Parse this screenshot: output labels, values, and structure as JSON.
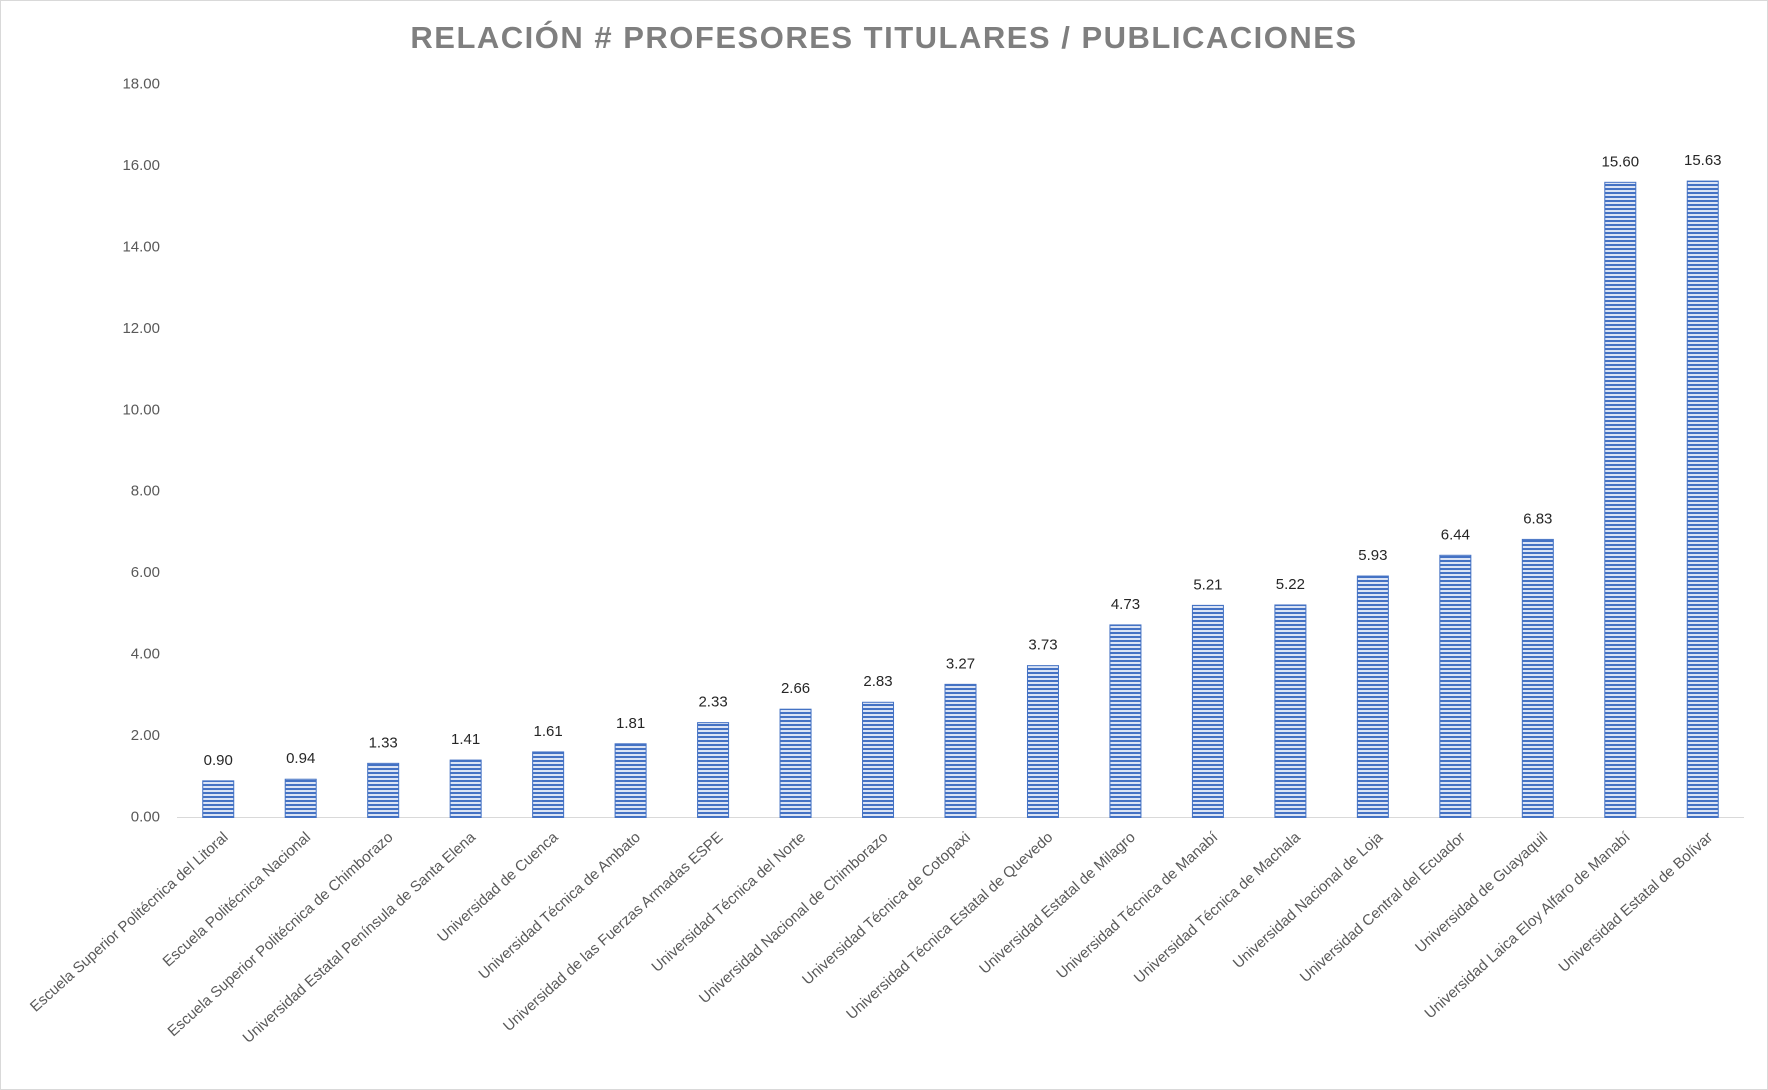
{
  "chart_data": {
    "type": "bar",
    "title": "RELACIÓN # PROFESORES TITULARES / PUBLICACIONES",
    "categories": [
      "Escuela Superior Politécnica del Litoral",
      "Escuela Politécnica Nacional",
      "Escuela Superior Politécnica de Chimborazo",
      "Universidad Estatal Península de Santa Elena",
      "Universidad de Cuenca",
      "Universidad Técnica de Ambato",
      "Universidad de las Fuerzas Armadas ESPE",
      "Universidad Técnica del Norte",
      "Universidad Nacional de Chimborazo",
      "Universidad Técnica de Cotopaxi",
      "Universidad Técnica Estatal de Quevedo",
      "Universidad Estatal de Milagro",
      "Universidad Técnica de Manabí",
      "Universidad Técnica de Machala",
      "Universidad Nacional de Loja",
      "Universidad Central del Ecuador",
      "Universidad de Guayaquil",
      "Universidad Laica Eloy Alfaro de Manabí",
      "Universidad Estatal de Bolívar"
    ],
    "values": [
      0.9,
      0.94,
      1.33,
      1.41,
      1.61,
      1.81,
      2.33,
      2.66,
      2.83,
      3.27,
      3.73,
      4.73,
      5.21,
      5.22,
      5.93,
      6.44,
      6.83,
      15.6,
      15.63
    ],
    "value_labels": [
      "0.90",
      "0.94",
      "1.33",
      "1.41",
      "1.61",
      "1.81",
      "2.33",
      "2.66",
      "2.83",
      "3.27",
      "3.73",
      "4.73",
      "5.21",
      "5.22",
      "5.93",
      "6.44",
      "6.83",
      "15.60",
      "15.63"
    ],
    "color": "#4472c4",
    "ylim": [
      0,
      18
    ],
    "yticks": [
      {
        "value": 0,
        "label": "0.00"
      },
      {
        "value": 2,
        "label": "2.00"
      },
      {
        "value": 4,
        "label": "4.00"
      },
      {
        "value": 6,
        "label": "6.00"
      },
      {
        "value": 8,
        "label": "8.00"
      },
      {
        "value": 10,
        "label": "10.00"
      },
      {
        "value": 12,
        "label": "12.00"
      },
      {
        "value": 14,
        "label": "14.00"
      },
      {
        "value": 16,
        "label": "16.00"
      },
      {
        "value": 18,
        "label": "18.00"
      }
    ],
    "grid": false
  }
}
